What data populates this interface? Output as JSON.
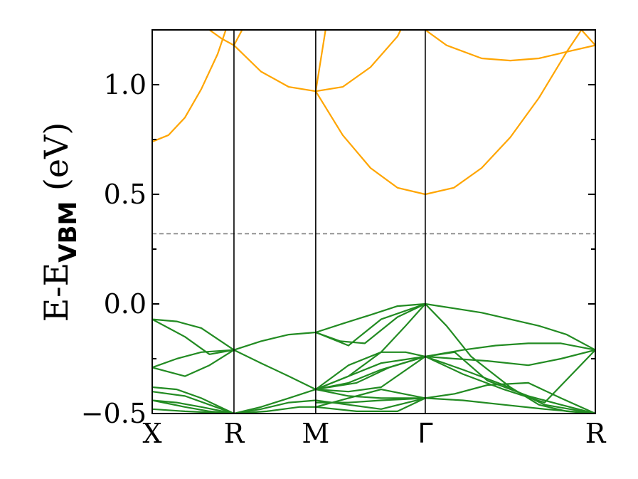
{
  "chart_data": {
    "type": "line",
    "title": "",
    "ylabel": {
      "main": "E-E",
      "sub": "VBM",
      "unit": "(eV)"
    },
    "xlabel": "",
    "ylim": [
      -0.5,
      1.25
    ],
    "xlim": [
      0,
      5.42
    ],
    "high_symmetry_points": [
      {
        "label": "X",
        "x": 0
      },
      {
        "label": "R",
        "x": 1.0
      },
      {
        "label": "M",
        "x": 2.0
      },
      {
        "label": "Γ",
        "x": 3.34
      },
      {
        "label": "R",
        "x": 5.42
      }
    ],
    "y_ticks": [
      {
        "value": -0.5,
        "label": "−0.5"
      },
      {
        "value": 0.0,
        "label": "0.0"
      },
      {
        "value": 0.5,
        "label": "0.5"
      },
      {
        "value": 1.0,
        "label": "1.0"
      }
    ],
    "reference_line": {
      "y": 0.32,
      "style": "dashed",
      "color": "#808080"
    },
    "grid": false,
    "series": [
      {
        "color": "#FFA500",
        "points": [
          [
            0,
            0.74
          ],
          [
            0.2,
            0.77
          ],
          [
            0.4,
            0.85
          ],
          [
            0.6,
            0.98
          ],
          [
            0.8,
            1.14
          ],
          [
            0.9,
            1.25
          ]
        ]
      },
      {
        "color": "#FFA500",
        "points": [
          [
            0.7,
            1.25
          ],
          [
            0.85,
            1.21
          ],
          [
            1.0,
            1.18
          ]
        ]
      },
      {
        "color": "#FFA500",
        "points": [
          [
            1.0,
            1.18
          ],
          [
            1.1,
            1.25
          ]
        ]
      },
      {
        "color": "#FFA500",
        "points": [
          [
            1.0,
            1.18
          ],
          [
            1.33,
            1.06
          ],
          [
            1.67,
            0.99
          ],
          [
            2.0,
            0.97
          ]
        ]
      },
      {
        "color": "#FFA500",
        "points": [
          [
            2.0,
            0.97
          ],
          [
            2.12,
            1.25
          ]
        ]
      },
      {
        "color": "#FFA500",
        "points": [
          [
            2.0,
            0.97
          ],
          [
            2.33,
            0.99
          ],
          [
            2.67,
            1.08
          ],
          [
            3.0,
            1.22
          ],
          [
            3.04,
            1.25
          ]
        ]
      },
      {
        "color": "#FFA500",
        "points": [
          [
            2.0,
            0.97
          ],
          [
            2.33,
            0.77
          ],
          [
            2.67,
            0.62
          ],
          [
            3.0,
            0.53
          ],
          [
            3.34,
            0.5
          ],
          [
            3.69,
            0.53
          ],
          [
            4.03,
            0.62
          ],
          [
            4.38,
            0.76
          ],
          [
            4.73,
            0.94
          ],
          [
            5.07,
            1.15
          ],
          [
            5.25,
            1.25
          ]
        ]
      },
      {
        "color": "#FFA500",
        "points": [
          [
            3.34,
            1.25
          ],
          [
            3.6,
            1.18
          ],
          [
            4.03,
            1.12
          ],
          [
            4.38,
            1.11
          ],
          [
            4.73,
            1.12
          ],
          [
            5.07,
            1.15
          ],
          [
            5.42,
            1.18
          ]
        ]
      },
      {
        "color": "#FFA500",
        "points": [
          [
            5.25,
            1.25
          ],
          [
            5.42,
            1.18
          ]
        ]
      },
      {
        "color": "#228B22",
        "points": [
          [
            0,
            -0.07
          ],
          [
            0.3,
            -0.08
          ],
          [
            0.6,
            -0.11
          ],
          [
            1.0,
            -0.21
          ]
        ]
      },
      {
        "color": "#228B22",
        "points": [
          [
            0,
            -0.07
          ],
          [
            0.4,
            -0.15
          ],
          [
            0.7,
            -0.23
          ],
          [
            1.0,
            -0.21
          ]
        ]
      },
      {
        "color": "#228B22",
        "points": [
          [
            0,
            -0.29
          ],
          [
            0.3,
            -0.25
          ],
          [
            0.6,
            -0.22
          ],
          [
            1.0,
            -0.21
          ]
        ]
      },
      {
        "color": "#228B22",
        "points": [
          [
            0,
            -0.29
          ],
          [
            0.4,
            -0.33
          ],
          [
            0.7,
            -0.28
          ],
          [
            1.0,
            -0.21
          ]
        ]
      },
      {
        "color": "#228B22",
        "points": [
          [
            1.0,
            -0.21
          ],
          [
            1.33,
            -0.17
          ],
          [
            1.67,
            -0.14
          ],
          [
            2.0,
            -0.13
          ]
        ]
      },
      {
        "color": "#228B22",
        "points": [
          [
            1.0,
            -0.21
          ],
          [
            1.33,
            -0.27
          ],
          [
            1.67,
            -0.33
          ],
          [
            2.0,
            -0.39
          ]
        ]
      },
      {
        "color": "#228B22",
        "points": [
          [
            2.0,
            -0.13
          ],
          [
            2.33,
            -0.09
          ],
          [
            2.67,
            -0.05
          ],
          [
            3.0,
            -0.01
          ],
          [
            3.34,
            0.0
          ]
        ]
      },
      {
        "color": "#228B22",
        "points": [
          [
            2.0,
            -0.13
          ],
          [
            2.3,
            -0.17
          ],
          [
            2.6,
            -0.18
          ],
          [
            3.0,
            -0.06
          ],
          [
            3.34,
            0.0
          ]
        ]
      },
      {
        "color": "#228B22",
        "points": [
          [
            2.0,
            -0.13
          ],
          [
            2.4,
            -0.19
          ],
          [
            2.8,
            -0.07
          ],
          [
            3.34,
            0.0
          ]
        ]
      },
      {
        "color": "#228B22",
        "points": [
          [
            3.34,
            0.0
          ],
          [
            3.69,
            -0.02
          ],
          [
            4.03,
            -0.04
          ],
          [
            4.38,
            -0.07
          ],
          [
            4.73,
            -0.1
          ],
          [
            5.07,
            -0.14
          ],
          [
            5.42,
            -0.21
          ]
        ]
      },
      {
        "color": "#228B22",
        "points": [
          [
            3.34,
            0.0
          ],
          [
            3.6,
            -0.1
          ],
          [
            3.9,
            -0.24
          ],
          [
            4.38,
            -0.38
          ],
          [
            4.73,
            -0.46
          ],
          [
            5.07,
            -0.49
          ],
          [
            5.42,
            -0.5
          ]
        ]
      },
      {
        "color": "#228B22",
        "points": [
          [
            3.34,
            0.0
          ],
          [
            3.1,
            -0.1
          ],
          [
            2.8,
            -0.22
          ],
          [
            2.4,
            -0.33
          ],
          [
            2.0,
            -0.39
          ]
        ]
      },
      {
        "color": "#228B22",
        "points": [
          [
            2.0,
            -0.39
          ],
          [
            2.4,
            -0.33
          ],
          [
            2.8,
            -0.27
          ],
          [
            3.34,
            -0.24
          ]
        ]
      },
      {
        "color": "#228B22",
        "points": [
          [
            2.0,
            -0.39
          ],
          [
            2.4,
            -0.28
          ],
          [
            2.8,
            -0.22
          ],
          [
            3.1,
            -0.22
          ],
          [
            3.34,
            -0.24
          ]
        ]
      },
      {
        "color": "#228B22",
        "points": [
          [
            2.0,
            -0.39
          ],
          [
            2.4,
            -0.36
          ],
          [
            2.8,
            -0.3
          ],
          [
            3.34,
            -0.24
          ]
        ]
      },
      {
        "color": "#228B22",
        "points": [
          [
            2.0,
            -0.39
          ],
          [
            2.4,
            -0.4
          ],
          [
            2.8,
            -0.38
          ],
          [
            3.34,
            -0.24
          ]
        ]
      },
      {
        "color": "#228B22",
        "points": [
          [
            2.0,
            -0.39
          ],
          [
            2.5,
            -0.36
          ],
          [
            2.9,
            -0.29
          ],
          [
            3.34,
            -0.24
          ]
        ]
      },
      {
        "color": "#228B22",
        "points": [
          [
            3.34,
            -0.24
          ],
          [
            3.8,
            -0.21
          ],
          [
            4.2,
            -0.19
          ],
          [
            4.6,
            -0.18
          ],
          [
            5.0,
            -0.18
          ],
          [
            5.42,
            -0.21
          ]
        ]
      },
      {
        "color": "#228B22",
        "points": [
          [
            3.34,
            -0.24
          ],
          [
            3.7,
            -0.25
          ],
          [
            4.1,
            -0.26
          ],
          [
            4.6,
            -0.28
          ],
          [
            5.0,
            -0.25
          ],
          [
            5.42,
            -0.21
          ]
        ]
      },
      {
        "color": "#228B22",
        "points": [
          [
            3.34,
            -0.24
          ],
          [
            3.7,
            -0.22
          ],
          [
            4.1,
            -0.35
          ],
          [
            4.6,
            -0.42
          ],
          [
            5.0,
            -0.46
          ],
          [
            5.42,
            -0.5
          ]
        ]
      },
      {
        "color": "#228B22",
        "points": [
          [
            3.34,
            -0.24
          ],
          [
            3.8,
            -0.3
          ],
          [
            4.3,
            -0.37
          ],
          [
            4.8,
            -0.46
          ],
          [
            5.42,
            -0.5
          ]
        ]
      },
      {
        "color": "#228B22",
        "points": [
          [
            3.34,
            -0.24
          ],
          [
            3.8,
            -0.32
          ],
          [
            4.3,
            -0.39
          ],
          [
            4.8,
            -0.45
          ],
          [
            5.42,
            -0.21
          ]
        ]
      },
      {
        "color": "#228B22",
        "points": [
          [
            3.34,
            -0.43
          ],
          [
            3.7,
            -0.41
          ],
          [
            4.1,
            -0.37
          ],
          [
            4.6,
            -0.36
          ],
          [
            5.0,
            -0.43
          ],
          [
            5.42,
            -0.5
          ]
        ]
      },
      {
        "color": "#228B22",
        "points": [
          [
            3.34,
            -0.43
          ],
          [
            3.8,
            -0.44
          ],
          [
            4.3,
            -0.46
          ],
          [
            4.8,
            -0.48
          ],
          [
            5.42,
            -0.5
          ]
        ]
      },
      {
        "color": "#228B22",
        "points": [
          [
            2.0,
            -0.39
          ],
          [
            2.4,
            -0.42
          ],
          [
            2.8,
            -0.43
          ],
          [
            3.34,
            -0.43
          ]
        ]
      },
      {
        "color": "#228B22",
        "points": [
          [
            2.0,
            -0.45
          ],
          [
            2.4,
            -0.45
          ],
          [
            2.8,
            -0.44
          ],
          [
            3.34,
            -0.43
          ]
        ]
      },
      {
        "color": "#228B22",
        "points": [
          [
            2.0,
            -0.47
          ],
          [
            2.4,
            -0.43
          ],
          [
            2.8,
            -0.39
          ],
          [
            3.34,
            -0.43
          ]
        ]
      },
      {
        "color": "#228B22",
        "points": [
          [
            2.0,
            -0.44
          ],
          [
            2.4,
            -0.46
          ],
          [
            2.8,
            -0.48
          ],
          [
            3.34,
            -0.43
          ]
        ]
      },
      {
        "color": "#228B22",
        "points": [
          [
            2.0,
            -0.47
          ],
          [
            2.5,
            -0.49
          ],
          [
            3.0,
            -0.49
          ],
          [
            3.34,
            -0.43
          ]
        ]
      },
      {
        "color": "#228B22",
        "points": [
          [
            1.0,
            -0.5
          ],
          [
            1.33,
            -0.47
          ],
          [
            1.67,
            -0.43
          ],
          [
            2.0,
            -0.39
          ]
        ]
      },
      {
        "color": "#228B22",
        "points": [
          [
            1.0,
            -0.5
          ],
          [
            1.33,
            -0.48
          ],
          [
            1.67,
            -0.45
          ],
          [
            2.0,
            -0.44
          ]
        ]
      },
      {
        "color": "#228B22",
        "points": [
          [
            1.0,
            -0.5
          ],
          [
            1.4,
            -0.49
          ],
          [
            1.8,
            -0.47
          ],
          [
            2.0,
            -0.47
          ]
        ]
      },
      {
        "color": "#228B22",
        "points": [
          [
            0,
            -0.38
          ],
          [
            0.3,
            -0.39
          ],
          [
            0.6,
            -0.43
          ],
          [
            1.0,
            -0.5
          ]
        ]
      },
      {
        "color": "#228B22",
        "points": [
          [
            0,
            -0.4
          ],
          [
            0.4,
            -0.42
          ],
          [
            0.7,
            -0.46
          ],
          [
            1.0,
            -0.5
          ]
        ]
      },
      {
        "color": "#228B22",
        "points": [
          [
            0,
            -0.44
          ],
          [
            0.3,
            -0.45
          ],
          [
            0.6,
            -0.47
          ],
          [
            1.0,
            -0.5
          ]
        ]
      },
      {
        "color": "#228B22",
        "points": [
          [
            0,
            -0.44
          ],
          [
            0.4,
            -0.47
          ],
          [
            0.7,
            -0.49
          ],
          [
            1.0,
            -0.5
          ]
        ]
      },
      {
        "color": "#228B22",
        "points": [
          [
            0,
            -0.48
          ],
          [
            0.4,
            -0.49
          ],
          [
            1.0,
            -0.5
          ]
        ]
      }
    ]
  }
}
